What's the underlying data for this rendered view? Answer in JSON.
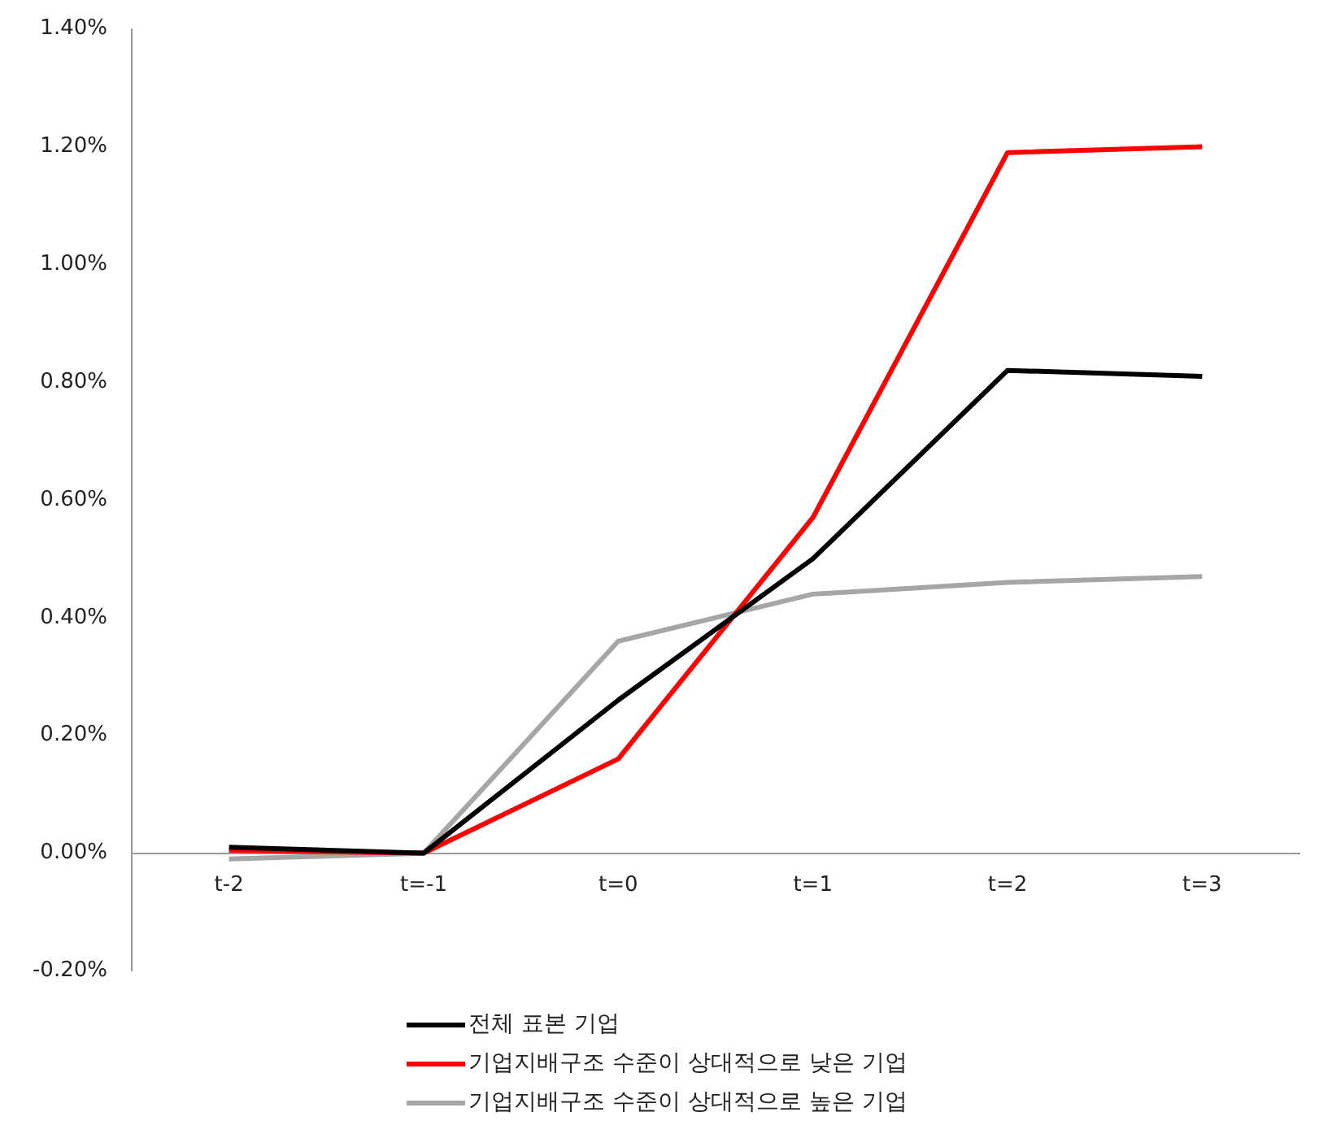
{
  "chart_data": {
    "type": "line",
    "categories": [
      "t-2",
      "t=-1",
      "t=0",
      "t=1",
      "t=2",
      "t=3"
    ],
    "series": [
      {
        "name": "전체 표본 기업",
        "color": "#000000",
        "values": [
          0.01,
          0,
          0.26,
          0.5,
          0.82,
          0.81
        ]
      },
      {
        "name": "기업지배구조 수준이 상대적으로 낮은 기업",
        "color": "#ff0000",
        "values": [
          0.005,
          0,
          0.16,
          0.57,
          1.19,
          1.2
        ]
      },
      {
        "name": "기업지배구조 수준이 상대적으로 높은 기업",
        "color": "#a6a6a6",
        "values": [
          -0.01,
          0,
          0.36,
          0.44,
          0.46,
          0.47
        ]
      }
    ],
    "ylim": [
      -0.2,
      1.4
    ],
    "yticks": [
      {
        "value": -0.2,
        "label": "-0.20%"
      },
      {
        "value": 0,
        "label": "0.00%"
      },
      {
        "value": 0.2,
        "label": "0.20%"
      },
      {
        "value": 0.4,
        "label": "0.40%"
      },
      {
        "value": 0.6,
        "label": "0.60%"
      },
      {
        "value": 0.8,
        "label": "0.80%"
      },
      {
        "value": 1,
        "label": "1.00%"
      },
      {
        "value": 1.2,
        "label": "1.20%"
      },
      {
        "value": 1.4,
        "label": "1.40%"
      }
    ],
    "grid": false,
    "legend": "bottom",
    "marker": "none",
    "line_style": "solid"
  }
}
